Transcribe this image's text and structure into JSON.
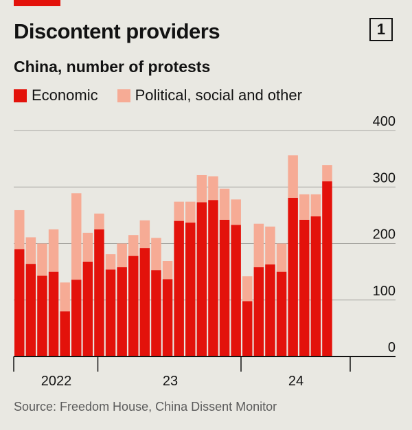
{
  "figure_number": "1",
  "colors": {
    "economic": "#e3120b",
    "political": "#f6ab95",
    "accent": "#e3120b",
    "grid": "#a7a6a1",
    "background": "#e9e8e2"
  },
  "chart_data": {
    "type": "bar",
    "stacked": true,
    "title": "Discontent providers",
    "subtitle": "China, number of protests",
    "source": "Source: Freedom House, China Dissent Monitor",
    "ylim": [
      0,
      400
    ],
    "yticks": [
      0,
      100,
      200,
      300,
      400
    ],
    "x_group_labels": [
      "2022",
      "23",
      "24"
    ],
    "categories": [
      "Jan 2022",
      "Feb 2022",
      "Mar 2022",
      "Apr 2022",
      "May 2022",
      "Jun 2022",
      "Jul 2022",
      "Aug 2022",
      "Sep 2022",
      "Oct 2022",
      "Nov 2022",
      "Dec 2022",
      "Jan 2023",
      "Feb 2023",
      "Mar 2023",
      "Apr 2023",
      "May 2023",
      "Jun 2023",
      "Jul 2023",
      "Aug 2023",
      "Sep 2023",
      "Oct 2023",
      "Nov 2023",
      "Dec 2023",
      "Jan 2024",
      "Feb 2024",
      "Mar 2024",
      "Apr 2024",
      "May 2024",
      "Jun 2024"
    ],
    "series": [
      {
        "name": "Economic",
        "values": [
          190,
          164,
          143,
          150,
          80,
          136,
          168,
          225,
          154,
          158,
          178,
          192,
          153,
          137,
          240,
          237,
          273,
          277,
          242,
          233,
          98,
          158,
          163,
          150,
          281,
          242,
          248,
          310,
          0,
          0
        ]
      },
      {
        "name": "Political, social and other",
        "values": [
          69,
          47,
          57,
          75,
          51,
          153,
          51,
          28,
          27,
          42,
          37,
          49,
          57,
          32,
          34,
          37,
          48,
          42,
          55,
          45,
          44,
          77,
          67,
          50,
          75,
          45,
          39,
          29,
          0,
          0
        ]
      }
    ]
  }
}
